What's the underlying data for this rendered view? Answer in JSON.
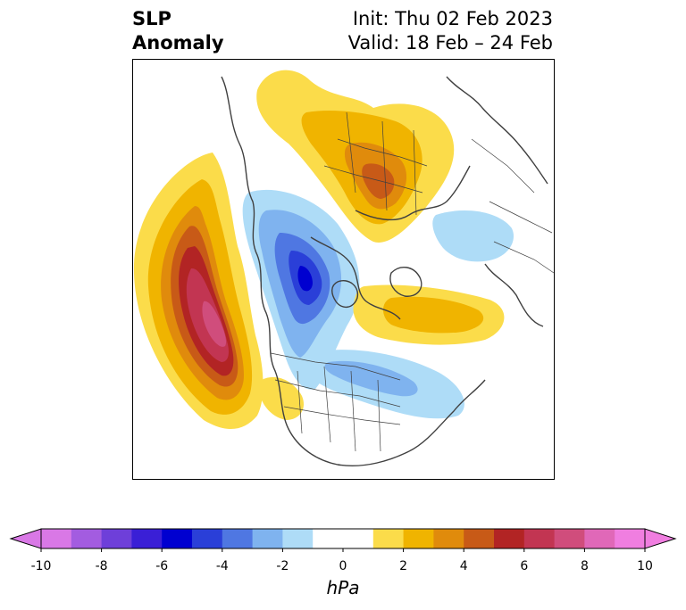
{
  "header": {
    "variable_line1": "SLP",
    "variable_line2": "Anomaly",
    "init": "Init: Thu 02 Feb 2023",
    "valid": "Valid: 18 Feb – 24 Feb"
  },
  "colorbar": {
    "unit": "hPa",
    "ticks": [
      "-10",
      "-8",
      "-6",
      "-4",
      "-2",
      "0",
      "2",
      "4",
      "6",
      "8",
      "10"
    ],
    "bins": [
      {
        "color": "#d978e6"
      },
      {
        "color": "#a35ce0"
      },
      {
        "color": "#6e3fd9"
      },
      {
        "color": "#3a1fd6"
      },
      {
        "color": "#0000d0"
      },
      {
        "color": "#2a3fd8"
      },
      {
        "color": "#4f77e2"
      },
      {
        "color": "#7fb3ef"
      },
      {
        "color": "#aedcf7"
      },
      {
        "color": "#ffffff"
      },
      {
        "color": "#ffffff"
      },
      {
        "color": "#fbdc4a"
      },
      {
        "color": "#f0b400"
      },
      {
        "color": "#e08b0c"
      },
      {
        "color": "#c85a17"
      },
      {
        "color": "#b22424"
      },
      {
        "color": "#c23552"
      },
      {
        "color": "#d04d7c"
      },
      {
        "color": "#e068b8"
      },
      {
        "color": "#f07ee0"
      }
    ],
    "under_color": "#d978e6",
    "over_color": "#f07ee0"
  },
  "map": {
    "projection": "north-polar-stereographic",
    "anomalies": [
      {
        "region": "north-pacific",
        "sign": "positive",
        "peak_hpa": 9
      },
      {
        "region": "western-canada",
        "sign": "negative",
        "peak_hpa": -6
      },
      {
        "region": "siberia",
        "sign": "positive",
        "peak_hpa": 5
      },
      {
        "region": "north-atlantic",
        "sign": "positive",
        "peak_hpa": 2
      },
      {
        "region": "eastern-north-america",
        "sign": "negative",
        "peak_hpa": -2
      },
      {
        "region": "east-asia",
        "sign": "negative",
        "peak_hpa": -1
      }
    ]
  }
}
